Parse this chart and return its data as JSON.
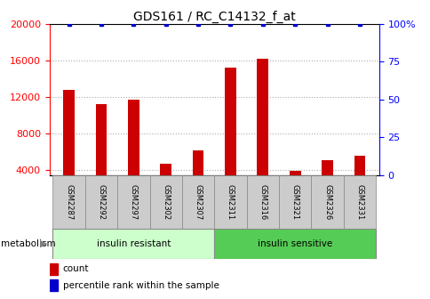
{
  "title": "GDS161 / RC_C14132_f_at",
  "samples": [
    "GSM2287",
    "GSM2292",
    "GSM2297",
    "GSM2302",
    "GSM2307",
    "GSM2311",
    "GSM2316",
    "GSM2321",
    "GSM2326",
    "GSM2331"
  ],
  "counts": [
    12800,
    11200,
    11700,
    4700,
    6200,
    15200,
    16200,
    3900,
    5100,
    5600
  ],
  "percentiles": [
    100,
    100,
    100,
    100,
    100,
    100,
    100,
    100,
    100,
    100
  ],
  "groups": [
    {
      "label": "insulin resistant",
      "start": 0,
      "end": 5,
      "color": "#ccffcc"
    },
    {
      "label": "insulin sensitive",
      "start": 5,
      "end": 10,
      "color": "#55cc55"
    }
  ],
  "group_label": "metabolism",
  "bar_color": "#cc0000",
  "percentile_color": "#0000cc",
  "ylim_left": [
    3500,
    20000
  ],
  "ylim_right": [
    0,
    100
  ],
  "yticks_left": [
    4000,
    8000,
    12000,
    16000,
    20000
  ],
  "yticks_right": [
    0,
    25,
    50,
    75,
    100
  ],
  "legend_items": [
    {
      "label": "count",
      "color": "#cc0000"
    },
    {
      "label": "percentile rank within the sample",
      "color": "#0000cc"
    }
  ],
  "bar_width": 0.35,
  "tick_box_color": "#cccccc",
  "bg_color": "#ffffff"
}
